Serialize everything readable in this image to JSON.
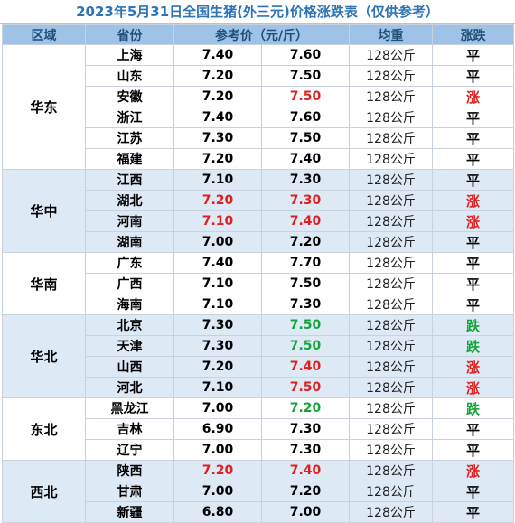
{
  "title": "2023年5月31日全国生猪(外三元)价格涨跌表（仅供参考）",
  "headers": {
    "region": "区域",
    "province": "省份",
    "price": "参考价（元/斤）",
    "weight": "均重",
    "trend": "涨跌"
  },
  "colors": {
    "title": "#2E74B5",
    "header_bg": "#9ec3e6",
    "band_blue": "#dde9f5",
    "up": "#e02020",
    "down": "#13a538"
  },
  "regions": [
    {
      "name": "华东",
      "band": "white",
      "rows": [
        {
          "province": "上海",
          "price1": "7.40",
          "price2": "7.60",
          "weight": "128公斤",
          "trend": "平",
          "dir": "flat",
          "p1_red": false
        },
        {
          "province": "山东",
          "price1": "7.20",
          "price2": "7.50",
          "weight": "128公斤",
          "trend": "平",
          "dir": "flat",
          "p1_red": false
        },
        {
          "province": "安徽",
          "price1": "7.20",
          "price2": "7.50",
          "weight": "128公斤",
          "trend": "涨",
          "dir": "up",
          "p1_red": false
        },
        {
          "province": "浙江",
          "price1": "7.40",
          "price2": "7.60",
          "weight": "128公斤",
          "trend": "平",
          "dir": "flat",
          "p1_red": false
        },
        {
          "province": "江苏",
          "price1": "7.30",
          "price2": "7.50",
          "weight": "128公斤",
          "trend": "平",
          "dir": "flat",
          "p1_red": false
        },
        {
          "province": "福建",
          "price1": "7.20",
          "price2": "7.40",
          "weight": "128公斤",
          "trend": "平",
          "dir": "flat",
          "p1_red": false
        }
      ]
    },
    {
      "name": "华中",
      "band": "blue",
      "rows": [
        {
          "province": "江西",
          "price1": "7.10",
          "price2": "7.30",
          "weight": "128公斤",
          "trend": "平",
          "dir": "flat",
          "p1_red": false
        },
        {
          "province": "湖北",
          "price1": "7.20",
          "price2": "7.30",
          "weight": "128公斤",
          "trend": "涨",
          "dir": "up",
          "p1_red": true
        },
        {
          "province": "河南",
          "price1": "7.10",
          "price2": "7.40",
          "weight": "128公斤",
          "trend": "涨",
          "dir": "up",
          "p1_red": true
        },
        {
          "province": "湖南",
          "price1": "7.00",
          "price2": "7.20",
          "weight": "128公斤",
          "trend": "平",
          "dir": "flat",
          "p1_red": false
        }
      ]
    },
    {
      "name": "华南",
      "band": "white",
      "rows": [
        {
          "province": "广东",
          "price1": "7.40",
          "price2": "7.70",
          "weight": "128公斤",
          "trend": "平",
          "dir": "flat",
          "p1_red": false
        },
        {
          "province": "广西",
          "price1": "7.10",
          "price2": "7.50",
          "weight": "128公斤",
          "trend": "平",
          "dir": "flat",
          "p1_red": false
        },
        {
          "province": "海南",
          "price1": "7.10",
          "price2": "7.30",
          "weight": "128公斤",
          "trend": "平",
          "dir": "flat",
          "p1_red": false
        }
      ]
    },
    {
      "name": "华北",
      "band": "blue",
      "rows": [
        {
          "province": "北京",
          "price1": "7.30",
          "price2": "7.50",
          "weight": "128公斤",
          "trend": "跌",
          "dir": "down",
          "p1_red": false
        },
        {
          "province": "天津",
          "price1": "7.30",
          "price2": "7.50",
          "weight": "128公斤",
          "trend": "跌",
          "dir": "down",
          "p1_red": false
        },
        {
          "province": "山西",
          "price1": "7.20",
          "price2": "7.40",
          "weight": "128公斤",
          "trend": "涨",
          "dir": "up",
          "p1_red": false
        },
        {
          "province": "河北",
          "price1": "7.10",
          "price2": "7.50",
          "weight": "128公斤",
          "trend": "涨",
          "dir": "up",
          "p1_red": false
        }
      ]
    },
    {
      "name": "东北",
      "band": "white",
      "rows": [
        {
          "province": "黑龙江",
          "price1": "7.00",
          "price2": "7.20",
          "weight": "128公斤",
          "trend": "跌",
          "dir": "down",
          "p1_red": false
        },
        {
          "province": "吉林",
          "price1": "6.90",
          "price2": "7.30",
          "weight": "128公斤",
          "trend": "平",
          "dir": "flat",
          "p1_red": false
        },
        {
          "province": "辽宁",
          "price1": "7.00",
          "price2": "7.30",
          "weight": "128公斤",
          "trend": "平",
          "dir": "flat",
          "p1_red": false
        }
      ]
    },
    {
      "name": "西北",
      "band": "blue",
      "rows": [
        {
          "province": "陕西",
          "price1": "7.20",
          "price2": "7.40",
          "weight": "128公斤",
          "trend": "涨",
          "dir": "up",
          "p1_red": true
        },
        {
          "province": "甘肃",
          "price1": "7.00",
          "price2": "7.20",
          "weight": "128公斤",
          "trend": "平",
          "dir": "flat",
          "p1_red": false
        },
        {
          "province": "新疆",
          "price1": "6.80",
          "price2": "7.00",
          "weight": "128公斤",
          "trend": "平",
          "dir": "flat",
          "p1_red": false
        }
      ]
    }
  ]
}
